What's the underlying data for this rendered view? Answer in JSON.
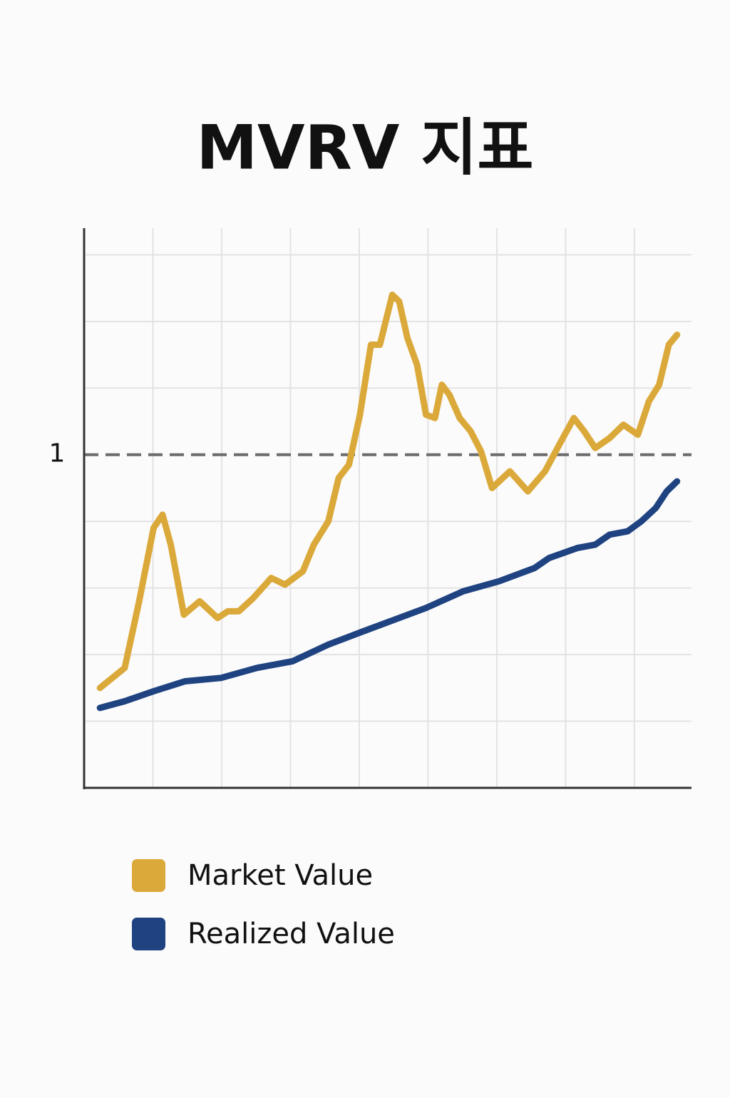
{
  "chart_data": {
    "type": "line",
    "title": "MVRV 지표",
    "xlim": [
      0,
      8.83
    ],
    "x_gridlines": [
      1,
      2,
      3,
      4,
      5,
      6,
      7,
      8
    ],
    "ylim": [
      0,
      1.68
    ],
    "yticks": [
      1
    ],
    "y_gridlines": [
      0.2,
      0.4,
      0.6,
      0.8,
      1.2,
      1.4,
      1.6
    ],
    "grid": true,
    "reference_line": {
      "value": 1,
      "color": "#6b6b6b",
      "style": "dashed"
    },
    "series": [
      {
        "name": "Market Value",
        "color": "#dba93a",
        "x": [
          0.23,
          0.59,
          0.8,
          1.01,
          1.14,
          1.26,
          1.45,
          1.68,
          1.94,
          2.09,
          2.25,
          2.46,
          2.72,
          2.92,
          3.18,
          3.34,
          3.55,
          3.7,
          3.85,
          4.01,
          4.17,
          4.3,
          4.48,
          4.58,
          4.7,
          4.84,
          4.97,
          5.1,
          5.2,
          5.31,
          5.46,
          5.62,
          5.77,
          5.93,
          6.19,
          6.45,
          6.7,
          6.96,
          7.12,
          7.27,
          7.43,
          7.64,
          7.84,
          8.05,
          8.21,
          8.36,
          8.5,
          8.62
        ],
        "values": [
          0.3,
          0.36,
          0.56,
          0.78,
          0.82,
          0.73,
          0.52,
          0.56,
          0.51,
          0.53,
          0.53,
          0.57,
          0.63,
          0.61,
          0.65,
          0.73,
          0.8,
          0.93,
          0.97,
          1.12,
          1.33,
          1.33,
          1.48,
          1.46,
          1.35,
          1.27,
          1.12,
          1.11,
          1.21,
          1.18,
          1.11,
          1.07,
          1.01,
          0.9,
          0.95,
          0.89,
          0.95,
          1.05,
          1.11,
          1.07,
          1.02,
          1.05,
          1.09,
          1.06,
          1.16,
          1.21,
          1.33,
          1.36
        ]
      },
      {
        "name": "Realized Value",
        "color": "#1f4380",
        "x": [
          0.23,
          0.59,
          1.01,
          1.47,
          1.99,
          2.51,
          3.03,
          3.55,
          4.06,
          4.58,
          4.97,
          5.51,
          6.03,
          6.55,
          6.76,
          7.17,
          7.43,
          7.64,
          7.9,
          8.1,
          8.31,
          8.47,
          8.62
        ],
        "values": [
          0.24,
          0.26,
          0.29,
          0.32,
          0.33,
          0.36,
          0.38,
          0.43,
          0.47,
          0.51,
          0.54,
          0.59,
          0.62,
          0.66,
          0.69,
          0.72,
          0.73,
          0.76,
          0.77,
          0.8,
          0.84,
          0.89,
          0.92
        ]
      }
    ]
  }
}
